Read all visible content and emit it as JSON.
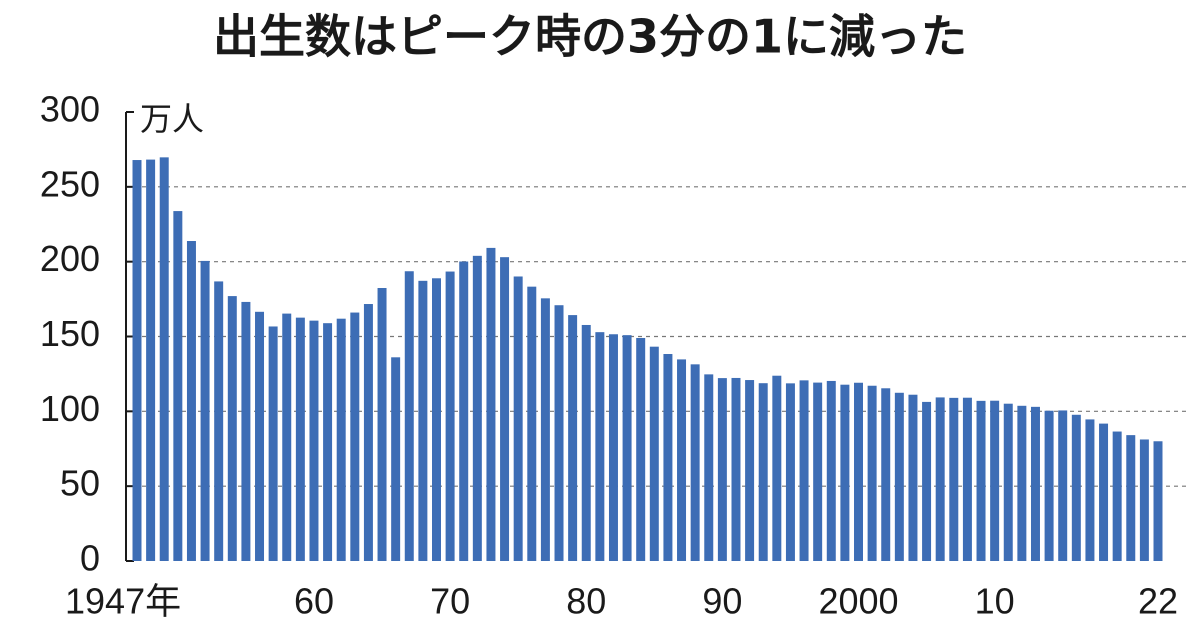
{
  "chart_data": {
    "type": "bar",
    "title": "出生数はピーク時の3分の1に減った",
    "y_unit": "万人",
    "categories": [
      "1947年",
      null,
      null,
      null,
      null,
      null,
      null,
      null,
      null,
      null,
      null,
      null,
      null,
      "60",
      null,
      null,
      null,
      null,
      null,
      null,
      null,
      null,
      null,
      "70",
      null,
      null,
      null,
      null,
      null,
      null,
      null,
      null,
      null,
      "80",
      null,
      null,
      null,
      null,
      null,
      null,
      null,
      null,
      null,
      "90",
      null,
      null,
      null,
      null,
      null,
      null,
      null,
      null,
      null,
      "2000",
      null,
      null,
      null,
      null,
      null,
      null,
      null,
      null,
      null,
      "10",
      null,
      null,
      null,
      null,
      null,
      null,
      null,
      null,
      null,
      null,
      null,
      "22"
    ],
    "values": [
      267.9,
      268.2,
      269.7,
      233.8,
      213.8,
      200.5,
      186.8,
      177.0,
      173.1,
      166.5,
      156.7,
      165.3,
      162.6,
      160.6,
      158.9,
      161.9,
      166.0,
      171.7,
      182.4,
      136.1,
      193.6,
      187.2,
      188.9,
      193.4,
      200.1,
      203.9,
      209.2,
      203.0,
      190.1,
      183.3,
      175.5,
      170.9,
      164.3,
      157.7,
      152.9,
      151.5,
      150.9,
      149.0,
      143.2,
      138.3,
      134.7,
      131.4,
      124.7,
      122.2,
      122.3,
      120.9,
      118.8,
      123.8,
      118.7,
      120.7,
      119.2,
      120.3,
      117.8,
      119.1,
      117.1,
      115.4,
      112.4,
      111.1,
      106.3,
      109.3,
      109.0,
      109.1,
      107.0,
      107.1,
      105.1,
      103.7,
      103.0,
      100.4,
      100.6,
      97.7,
      94.6,
      91.8,
      86.5,
      84.1,
      81.2,
      80.0
    ],
    "color": "#3d6db5",
    "ylim": [
      0,
      300
    ],
    "yticks": [
      0,
      50,
      100,
      150,
      200,
      250,
      300
    ],
    "grid": true
  }
}
